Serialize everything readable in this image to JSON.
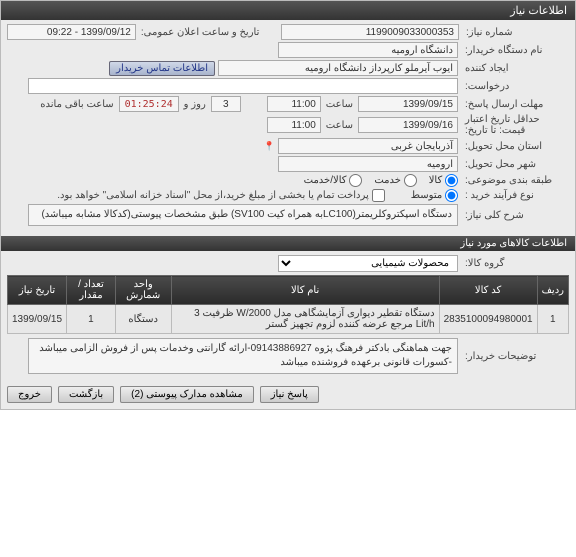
{
  "header": "اطلاعات نیاز",
  "labels": {
    "num": "شماره نیاز:",
    "dt": "تاریخ و ساعت اعلان عمومی:",
    "buyer": "نام دستگاه خریدار:",
    "creator": "ایجاد کننده",
    "extra": "درخواست:",
    "deadline": "مهلت ارسال پاسخ:",
    "valid": "حداقل تاریخ اعتبار",
    "valid2": "قیمت: تا تاریخ:",
    "hour": "ساعت",
    "days": "روز و",
    "remain": "ساعت باقی مانده",
    "prov": "استان محل تحویل:",
    "city": "شهر محل تحویل:",
    "cat": "طبقه بندی موضوعی:",
    "proc": "نوع فرآیند خرید :",
    "full": "پرداخت تمام یا بخشی از مبلغ خرید،از محل \"اسناد خزانه اسلامی\" خواهد بود.",
    "goods": "کالا",
    "service": "خدمت",
    "both": "کالا/خدمت",
    "avg": "متوسط",
    "brief": "شرح کلی نیاز:",
    "sec2": "اطلاعات کالاهای مورد نیاز",
    "group": "گروه کالا:",
    "notes": "توضیحات خریدار:",
    "contact": "اطلاعات تماس خریدار"
  },
  "vals": {
    "num": "1199009033000353",
    "dt": "1399/09/12 - 09:22",
    "buyer": "دانشگاه ارومیه",
    "creator": "ایوب آیرملو کارپرداز دانشگاه ارومیه",
    "extra": "",
    "dl_date": "1399/09/15",
    "dl_time": "11:00",
    "days": "3",
    "cd": "01:25:24",
    "v_date": "1399/09/16",
    "v_time": "11:00",
    "prov": "آذربایجان غربی",
    "city": "ارومیه",
    "brief": "دستگاه اسپکتروکلریمتر(LC100به همراه کیت SV100) طبق مشخصات پیوستی(کدکالا مشابه میباشد)",
    "group": "محصولات شیمیایی",
    "notes": "جهت هماهنگی بادکتر فرهنگ پژوه 09143886927-ارائه گارانتی وخدمات پس از فروش الزامی میباشد -کسورات قانونی برعهده فروشنده میباشد"
  },
  "table": {
    "cols": [
      "ردیف",
      "کد کالا",
      "نام کالا",
      "واحد شمارش",
      "تعداد / مقدار",
      "تاریخ نیاز"
    ],
    "row": [
      "1",
      "2835100094980001",
      "دستگاه تقطیر دیواری آزمایشگاهی مدل W/2000 ظرفیت 3 Lit/h مرجع عرضه کننده لزوم تجهیز گستر",
      "دستگاه",
      "1",
      "1399/09/15"
    ]
  },
  "btns": {
    "ans": "پاسخ نیاز",
    "att": "مشاهده مدارک پیوستی (2)",
    "back": "بازگشت",
    "exit": "خروج"
  }
}
